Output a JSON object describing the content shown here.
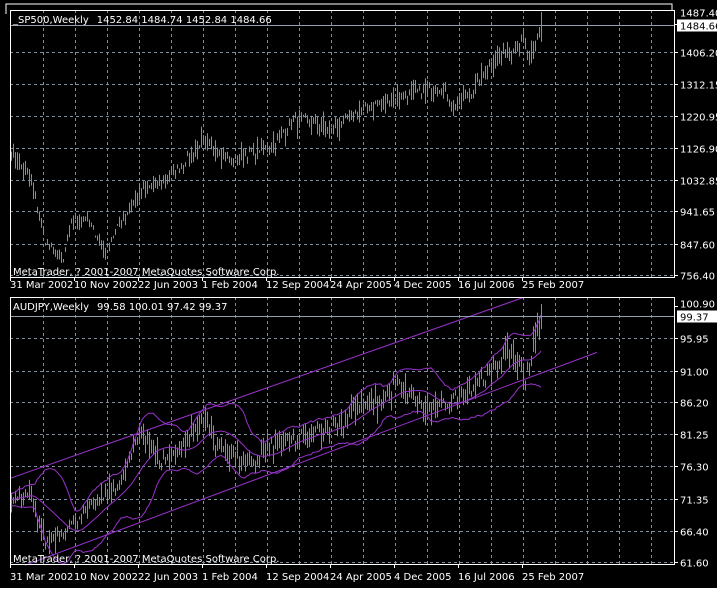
{
  "colors": {
    "background": "#000000",
    "bars": "#32cd32",
    "grid": "#7f8c99",
    "frame": "#ffffff",
    "indicator": "#9932cc",
    "price_line": "#8fa0b0"
  },
  "watermark": "MetaTrader, ? 2001-2007 MetaQuotes Software Corp.",
  "date_labels": [
    "31 Mar 2002",
    "10 Nov 2002",
    "22 Jun 2003",
    "1 Feb 2004",
    "12 Sep 2004",
    "24 Apr 2005",
    "4 Dec 2005",
    "16 Jul 2006",
    "25 Feb 2007"
  ],
  "chart_data": [
    {
      "type": "bar",
      "title": "_SP500,Weekly",
      "ohlc_label": "1452.84 1484.74 1452.84 1484.66",
      "last_price": "1484.66",
      "ylim": [
        750.6,
        1528.6
      ],
      "y_ticks": [
        "1487.40",
        "1406.20",
        "1312.15",
        "1220.95",
        "1126.90",
        "1032.85",
        "941.65",
        "847.60",
        "756.40"
      ],
      "x_ticks": [
        "31 Mar 2002",
        "10 Nov 2002",
        "22 Jun 2003",
        "1 Feb 2004",
        "12 Sep 2004",
        "24 Apr 2005",
        "4 Dec 2005",
        "16 Jul 2006",
        "25 Feb 2007"
      ],
      "grid": true,
      "approx_closes": [
        [
          "2002-03-31",
          1120
        ],
        [
          "2002-06-09",
          1033
        ],
        [
          "2002-07-28",
          858
        ],
        [
          "2002-09-29",
          800
        ],
        [
          "2002-10-27",
          917
        ],
        [
          "2002-12-15",
          930
        ],
        [
          "2003-02-23",
          830
        ],
        [
          "2003-04-20",
          917
        ],
        [
          "2003-06-29",
          1004
        ],
        [
          "2003-09-07",
          1033
        ],
        [
          "2003-11-16",
          1077
        ],
        [
          "2004-01-25",
          1150
        ],
        [
          "2004-03-14",
          1135
        ],
        [
          "2004-05-09",
          1091
        ],
        [
          "2004-07-18",
          1120
        ],
        [
          "2004-09-26",
          1135
        ],
        [
          "2004-12-05",
          1208
        ],
        [
          "2005-02-13",
          1208
        ],
        [
          "2005-04-24",
          1179
        ],
        [
          "2005-07-03",
          1222
        ],
        [
          "2005-09-11",
          1252
        ],
        [
          "2005-12-04",
          1281
        ],
        [
          "2006-03-05",
          1295
        ],
        [
          "2006-05-14",
          1310
        ],
        [
          "2006-07-02",
          1252
        ],
        [
          "2006-08-27",
          1295
        ],
        [
          "2006-11-05",
          1383
        ],
        [
          "2007-01-14",
          1427
        ],
        [
          "2007-02-25",
          1441
        ],
        [
          "2007-03-18",
          1383
        ],
        [
          "2007-04-29",
          1484.66
        ]
      ]
    },
    {
      "type": "bar",
      "title": "AUDJPY,Weekly",
      "ohlc_label": "99.58 100.01 97.42 99.37",
      "last_price": "99.37",
      "ylim": [
        61.3,
        102.3
      ],
      "y_ticks": [
        "100.90",
        "95.95",
        "91.00",
        "86.20",
        "81.25",
        "76.30",
        "71.35",
        "66.40",
        "61.60"
      ],
      "x_ticks": [
        "31 Mar 2002",
        "10 Nov 2002",
        "22 Jun 2003",
        "1 Feb 2004",
        "12 Sep 2004",
        "24 Apr 2005",
        "4 Dec 2005",
        "16 Jul 2006",
        "25 Feb 2007"
      ],
      "grid": true,
      "bollinger_bands": true,
      "channel_lines": [
        [
          [
            "2002-03-31",
            74.5
          ],
          [
            "2007-02-25",
            102.2
          ]
        ],
        [
          [
            "2002-05-19",
            61.1
          ],
          [
            "2007-11-11",
            93.8
          ]
        ]
      ],
      "approx_closes": [
        [
          "2002-03-31",
          71.1
        ],
        [
          "2002-06-09",
          71.9
        ],
        [
          "2002-07-28",
          65
        ],
        [
          "2002-09-29",
          66.5
        ],
        [
          "2003-01-05",
          70.3
        ],
        [
          "2003-04-20",
          74.2
        ],
        [
          "2003-06-29",
          81.9
        ],
        [
          "2003-09-07",
          77.3
        ],
        [
          "2003-11-16",
          79.6
        ],
        [
          "2004-02-08",
          84.2
        ],
        [
          "2004-03-14",
          80.3
        ],
        [
          "2004-07-04",
          76.5
        ],
        [
          "2004-08-29",
          78.8
        ],
        [
          "2005-01-16",
          81.1
        ],
        [
          "2005-06-05",
          83.4
        ],
        [
          "2005-07-03",
          85.7
        ],
        [
          "2005-10-16",
          86.5
        ],
        [
          "2005-12-04",
          89.5
        ],
        [
          "2006-01-29",
          87.2
        ],
        [
          "2006-04-09",
          84.9
        ],
        [
          "2006-06-18",
          86.5
        ],
        [
          "2006-08-27",
          88.8
        ],
        [
          "2006-11-05",
          91.1
        ],
        [
          "2007-01-14",
          94.9
        ],
        [
          "2007-03-04",
          90.3
        ],
        [
          "2007-04-08",
          95.7
        ],
        [
          "2007-04-29",
          99.37
        ]
      ]
    }
  ]
}
